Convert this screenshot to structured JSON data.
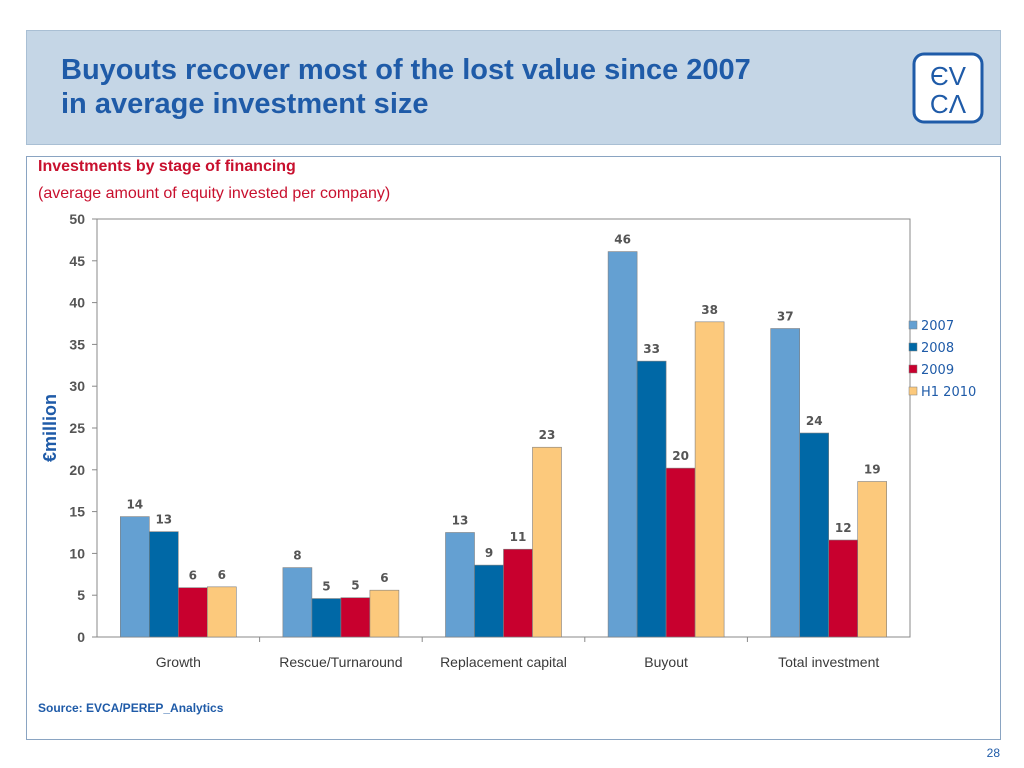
{
  "slide": {
    "title_line1": "Buyouts recover most of the lost value since 2007",
    "title_line2": "in average investment size",
    "subtitle": "Investments by stage of financing",
    "subtitle2": "(average amount of equity invested per company)",
    "source": "Source: EVCA/PEREP_Analytics",
    "page_number": "28",
    "logo": {
      "top": "ЄV",
      "bottom": "CΛ",
      "color": "#1f5ba8"
    }
  },
  "chart_data": {
    "type": "bar",
    "title": "Investments by stage of financing",
    "subtitle": "(average amount of equity invested per company)",
    "xlabel": "",
    "ylabel": "€million",
    "ylim": [
      0,
      50
    ],
    "yticks": [
      0,
      5,
      10,
      15,
      20,
      25,
      30,
      35,
      40,
      45,
      50
    ],
    "grid": false,
    "legend_position": "right",
    "categories": [
      "Growth",
      "Rescue/Turnaround",
      "Replacement capital",
      "Buyout",
      "Total investment"
    ],
    "series": [
      {
        "name": "2007",
        "color": "#64a0d2",
        "values": [
          14.4,
          8.3,
          12.5,
          46.1,
          36.9
        ],
        "labels": [
          "14",
          "8",
          "13",
          "46",
          "37"
        ]
      },
      {
        "name": "2008",
        "color": "#0068a6",
        "values": [
          12.6,
          4.6,
          8.6,
          33.0,
          24.4
        ],
        "labels": [
          "13",
          "5",
          "9",
          "33",
          "24"
        ]
      },
      {
        "name": "2009",
        "color": "#c8002e",
        "values": [
          5.9,
          4.7,
          10.5,
          20.2,
          11.6
        ],
        "labels": [
          "6",
          "5",
          "11",
          "20",
          "12"
        ]
      },
      {
        "name": "H1 2010",
        "color": "#fcc97c",
        "values": [
          6.0,
          5.6,
          22.7,
          37.7,
          18.6
        ],
        "labels": [
          "6",
          "6",
          "23",
          "38",
          "19"
        ]
      }
    ]
  }
}
